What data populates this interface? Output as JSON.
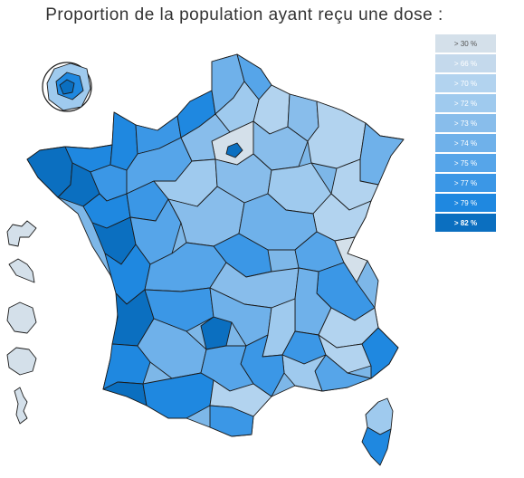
{
  "title": "Proportion de la population ayant reçu une dose :",
  "legend": {
    "items": [
      {
        "label": "> 30 %",
        "color": "#d4e0ea"
      },
      {
        "label": "> 66 %",
        "color": "#c4d9ec"
      },
      {
        "label": "> 70 %",
        "color": "#b2d3ef"
      },
      {
        "label": "> 72 %",
        "color": "#9fcaee"
      },
      {
        "label": "> 73 %",
        "color": "#88bdeb"
      },
      {
        "label": "> 74 %",
        "color": "#6fb1ea"
      },
      {
        "label": "> 75 %",
        "color": "#56a5e9"
      },
      {
        "label": "> 77 %",
        "color": "#3b97e6"
      },
      {
        "label": "> 79 %",
        "color": "#1f88e0"
      },
      {
        "label": "> 82 %",
        "color": "#0b6fc0"
      }
    ],
    "selected_index": 9
  }
}
